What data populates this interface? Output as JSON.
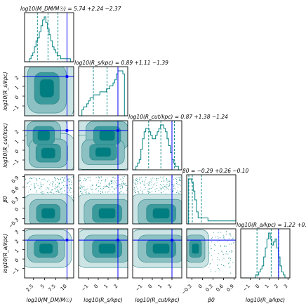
{
  "chart_data": {
    "type": "corner",
    "parameters": [
      {
        "key": "mdm",
        "axis_label": "log10(M_DM/M☉)",
        "title_text": "log10(M_DM/M☉) = 5.74 +2.24 −2.37",
        "tick_values": [
          2.5,
          5.0,
          7.5,
          10.0
        ],
        "range": [
          0.5,
          11.5
        ],
        "truth": 10.0,
        "quantiles": [
          3.37,
          5.74,
          7.98
        ],
        "hist": [
          0,
          0,
          0,
          1,
          2,
          3,
          5,
          7,
          8,
          10,
          12,
          14,
          15,
          13,
          11,
          9,
          7,
          5,
          4,
          3,
          2,
          2,
          1,
          1,
          1,
          1,
          1,
          1,
          0,
          0
        ]
      },
      {
        "key": "rs",
        "axis_label": "log10(R_s/kpc)",
        "title_text": "log10(R_s/kpc) = 0.89 +1.11 −1.39",
        "tick_values": [
          -1,
          0,
          1,
          2
        ],
        "range": [
          -2,
          3
        ],
        "truth": 2.0,
        "quantiles": [
          -0.5,
          0.89,
          2.0
        ],
        "hist": [
          0,
          0,
          2,
          3,
          3,
          4,
          5,
          6,
          6,
          7,
          7,
          7,
          7,
          8,
          8,
          8,
          8,
          9,
          9,
          10,
          10,
          11,
          12,
          14,
          15,
          15,
          15,
          14,
          0,
          0
        ]
      },
      {
        "key": "rcut",
        "axis_label": "log10(R_cut/kpc)",
        "title_text": "log10(R_cut/kpc) = 0.87 +1.38 −1.24",
        "tick_values": [
          -1,
          0,
          1,
          2
        ],
        "range": [
          -2,
          3
        ],
        "truth": 2.0,
        "quantiles": [
          -0.37,
          0.87,
          2.25
        ],
        "hist": [
          0,
          0,
          1,
          2,
          3,
          6,
          9,
          11,
          12,
          12,
          11,
          10,
          9,
          9,
          10,
          11,
          12,
          13,
          13,
          12,
          11,
          9,
          7,
          5,
          3,
          2,
          1,
          1,
          0,
          0
        ]
      },
      {
        "key": "beta0",
        "axis_label": "β0",
        "title_text": "β0 = −0.29 +0.26 −0.10",
        "tick_values": [
          -0.3,
          0.0,
          0.3,
          0.6,
          0.9
        ],
        "range": [
          -0.45,
          0.95
        ],
        "truth": null,
        "quantiles": [
          -0.39,
          -0.29,
          -0.03
        ],
        "hist": [
          0,
          15,
          15,
          14,
          11,
          8,
          4,
          2,
          2,
          2,
          2,
          2,
          2,
          1,
          1,
          1,
          1,
          1,
          1,
          1,
          1,
          1,
          1,
          1,
          1,
          1,
          1,
          1,
          1,
          1
        ]
      },
      {
        "key": "ra",
        "axis_label": "log10(R_a/kpc)",
        "title_text": "log10(R_a/kpc) = 1.22 +0.81 −1.50",
        "tick_values": [
          -1,
          0,
          1,
          2,
          3
        ],
        "range": [
          -2,
          3.2
        ],
        "truth": 2.0,
        "quantiles": [
          -0.28,
          1.22,
          2.03
        ],
        "hist": [
          0,
          0,
          0,
          0,
          0,
          0,
          0,
          0,
          0,
          1,
          1,
          2,
          3,
          4,
          7,
          10,
          13,
          15,
          13,
          11,
          12,
          13,
          10,
          7,
          4,
          2,
          1,
          0,
          0,
          0
        ]
      }
    ],
    "truth_point": {
      "mdm": 10.0,
      "rs": 2.0,
      "rcut": 2.0,
      "ra": 2.0
    },
    "blobs": {
      "1-0": [
        {
          "cx": 5.5,
          "cy": 0.8,
          "sx": 2.4,
          "sy": 1.4,
          "w": 1
        }
      ],
      "2-0": [
        {
          "cx": 4.8,
          "cy": 1.5,
          "sx": 2.1,
          "sy": 0.8,
          "w": 0.6
        },
        {
          "cx": 5.8,
          "cy": -0.3,
          "sx": 2.4,
          "sy": 0.8,
          "w": 0.6
        }
      ],
      "2-1": [
        {
          "cx": 0.9,
          "cy": 1.5,
          "sx": 1.2,
          "sy": 0.8,
          "w": 0.6
        },
        {
          "cx": 0.5,
          "cy": -0.2,
          "sx": 1.2,
          "sy": 0.7,
          "w": 0.6
        }
      ],
      "3-0": [
        {
          "cx": 5.8,
          "cy": -0.15,
          "sx": 2.3,
          "sy": 0.22,
          "w": 1
        }
      ],
      "3-1": [
        {
          "cx": 0.9,
          "cy": -0.15,
          "sx": 1.3,
          "sy": 0.22,
          "w": 1
        }
      ],
      "3-2": [
        {
          "cx": 0.9,
          "cy": -0.15,
          "sx": 1.3,
          "sy": 0.22,
          "w": 1
        }
      ],
      "4-0": [
        {
          "cx": 5.3,
          "cy": 1.1,
          "sx": 2.3,
          "sy": 0.8,
          "w": 1
        }
      ],
      "4-1": [
        {
          "cx": 0.9,
          "cy": 1.1,
          "sx": 1.3,
          "sy": 0.8,
          "w": 1
        }
      ],
      "4-2": [
        {
          "cx": 0.9,
          "cy": 1.1,
          "sx": 1.3,
          "sy": 0.8,
          "w": 1
        }
      ],
      "4-3": [
        {
          "cx": -0.2,
          "cy": 1.1,
          "sx": 0.15,
          "sy": 0.8,
          "w": 1
        }
      ]
    },
    "contour_colors": [
      "#cde4e4",
      "#8cc0c2",
      "#3a9a9c",
      "#007d80"
    ],
    "line_color": "#008080",
    "truth_color": "#0000ff",
    "grid": false
  }
}
